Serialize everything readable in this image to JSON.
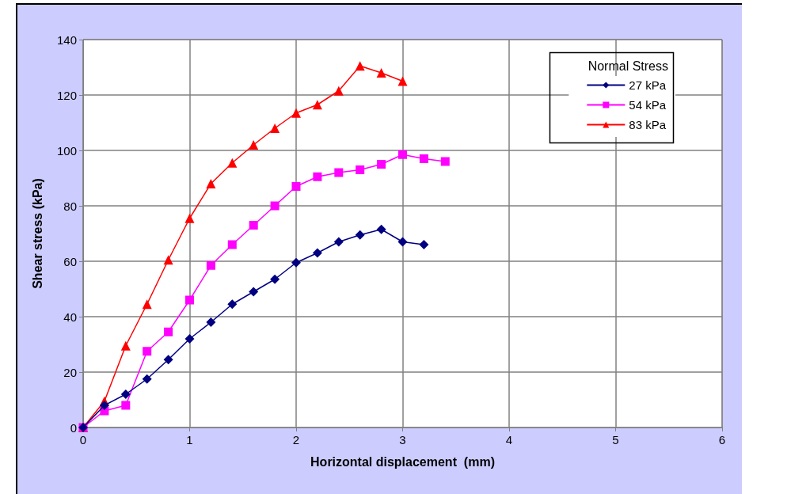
{
  "chart_data": {
    "type": "line",
    "xlabel": "Horizontal displacement  (mm)",
    "ylabel": "Shear stress (kPa)",
    "legend_title": "Normal Stress",
    "series": [
      {
        "name": "27 kPa",
        "color": "#000080",
        "marker": "diamond",
        "x": [
          0,
          0.2,
          0.4,
          0.6,
          0.8,
          1,
          1.2,
          1.4,
          1.6,
          1.8,
          2,
          2.2,
          2.4,
          2.6,
          2.8,
          3,
          3.2
        ],
        "values": [
          0,
          8,
          12,
          17.5,
          24.5,
          32,
          38,
          44.5,
          49,
          53.5,
          59.5,
          63,
          67,
          69.5,
          71.5,
          67,
          66
        ]
      },
      {
        "name": "54 kPa",
        "color": "#ff00ff",
        "marker": "square",
        "x": [
          0,
          0.2,
          0.4,
          0.6,
          0.8,
          1,
          1.2,
          1.4,
          1.6,
          1.8,
          2,
          2.2,
          2.4,
          2.6,
          2.8,
          3,
          3.2,
          3.4
        ],
        "values": [
          0,
          6,
          8,
          27.5,
          34.5,
          46,
          58.5,
          66,
          73,
          80,
          87,
          90.5,
          92,
          93,
          95,
          98.5,
          97,
          96
        ]
      },
      {
        "name": "83 kPa",
        "color": "#ff0000",
        "marker": "triangle",
        "x": [
          0,
          0.2,
          0.4,
          0.6,
          0.8,
          1,
          1.2,
          1.4,
          1.6,
          1.8,
          2,
          2.2,
          2.4,
          2.6,
          2.8,
          3
        ],
        "values": [
          0,
          9.5,
          29.5,
          44.5,
          60.5,
          75.5,
          88,
          95.5,
          102,
          108,
          113.5,
          116.5,
          121.5,
          130.5,
          128,
          125
        ]
      }
    ],
    "xlim": [
      0,
      6
    ],
    "xticks": [
      0,
      1,
      2,
      3,
      4,
      5,
      6
    ],
    "ylim": [
      0,
      140
    ],
    "yticks": [
      0,
      20,
      40,
      60,
      80,
      100,
      120,
      140
    ],
    "grid": true,
    "legend": "top right",
    "line_style": "solid"
  }
}
